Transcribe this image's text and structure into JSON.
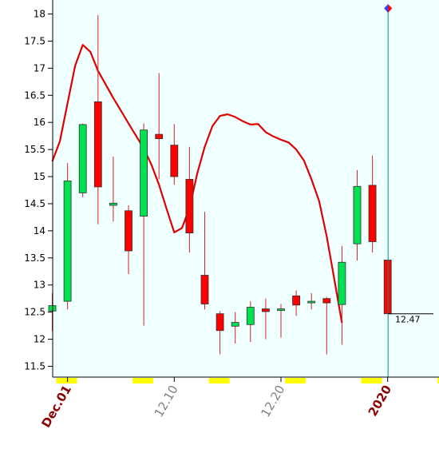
{
  "chart_data": {
    "type": "candlestick",
    "title": "",
    "xlabel": "",
    "ylabel": "",
    "ylim": [
      11.3,
      18.15
    ],
    "yticks": [
      11.5,
      12,
      12.5,
      13,
      13.5,
      14,
      14.5,
      15,
      15.5,
      16,
      16.5,
      17,
      17.5,
      18
    ],
    "ytick_labels": [
      "11.5",
      "12",
      "12.5",
      "13",
      "13.5",
      "14",
      "14.5",
      "15",
      "15.5",
      "16",
      "16.5",
      "17",
      "17.5",
      "18"
    ],
    "x_labels": [
      {
        "index": 1,
        "text": "Dec.01",
        "color": "#8b0000",
        "bold": true
      },
      {
        "index": 8,
        "text": "12.10",
        "color": "#808080",
        "bold": false
      },
      {
        "index": 15,
        "text": "12.20",
        "color": "#808080",
        "bold": false
      },
      {
        "index": 22,
        "text": "2020",
        "color": "#8b0000",
        "bold": true
      }
    ],
    "weekend_markers": [
      1,
      6,
      11,
      16,
      21,
      26
    ],
    "candles": [
      {
        "open": 12.52,
        "high": 12.85,
        "low": 12.15,
        "close": 12.62
      },
      {
        "open": 12.7,
        "high": 15.25,
        "low": 12.55,
        "close": 14.92
      },
      {
        "open": 14.7,
        "high": 15.98,
        "low": 14.62,
        "close": 15.96
      },
      {
        "open": 16.38,
        "high": 17.98,
        "low": 14.12,
        "close": 14.81
      },
      {
        "open": 14.47,
        "high": 15.37,
        "low": 14.17,
        "close": 14.51
      },
      {
        "open": 14.37,
        "high": 14.47,
        "low": 13.2,
        "close": 13.63
      },
      {
        "open": 14.27,
        "high": 15.98,
        "low": 12.25,
        "close": 15.86
      },
      {
        "open": 15.78,
        "high": 16.91,
        "low": 14.95,
        "close": 15.7
      },
      {
        "open": 15.58,
        "high": 15.97,
        "low": 14.85,
        "close": 15.0
      },
      {
        "open": 14.95,
        "high": 15.55,
        "low": 13.6,
        "close": 13.96
      },
      {
        "open": 13.18,
        "high": 14.35,
        "low": 12.55,
        "close": 12.65
      },
      {
        "open": 12.47,
        "high": 12.52,
        "low": 11.72,
        "close": 12.16
      },
      {
        "open": 12.24,
        "high": 12.5,
        "low": 11.92,
        "close": 12.31
      },
      {
        "open": 12.27,
        "high": 12.7,
        "low": 11.95,
        "close": 12.59
      },
      {
        "open": 12.56,
        "high": 12.75,
        "low": 12.0,
        "close": 12.51
      },
      {
        "open": 12.53,
        "high": 12.65,
        "low": 12.03,
        "close": 12.56
      },
      {
        "open": 12.8,
        "high": 12.9,
        "low": 12.43,
        "close": 12.63
      },
      {
        "open": 12.68,
        "high": 12.85,
        "low": 12.55,
        "close": 12.7
      },
      {
        "open": 12.75,
        "high": 12.78,
        "low": 11.72,
        "close": 12.67
      },
      {
        "open": 12.64,
        "high": 13.72,
        "low": 11.9,
        "close": 13.42
      },
      {
        "open": 13.76,
        "high": 15.12,
        "low": 13.45,
        "close": 14.82
      },
      {
        "open": 14.84,
        "high": 15.39,
        "low": 13.6,
        "close": 13.8
      },
      {
        "open": 13.46,
        "high": 13.46,
        "low": 12.47,
        "close": 12.47
      }
    ],
    "moving_average": [
      {
        "x": 0.0,
        "y": 15.28
      },
      {
        "x": 0.5,
        "y": 15.65
      },
      {
        "x": 1.0,
        "y": 16.35
      },
      {
        "x": 1.5,
        "y": 17.05
      },
      {
        "x": 2.0,
        "y": 17.43
      },
      {
        "x": 2.5,
        "y": 17.3
      },
      {
        "x": 3.0,
        "y": 16.95
      },
      {
        "x": 3.5,
        "y": 16.7
      },
      {
        "x": 4.0,
        "y": 16.45
      },
      {
        "x": 4.5,
        "y": 16.22
      },
      {
        "x": 5.0,
        "y": 15.98
      },
      {
        "x": 5.5,
        "y": 15.75
      },
      {
        "x": 6.0,
        "y": 15.52
      },
      {
        "x": 6.5,
        "y": 15.22
      },
      {
        "x": 7.0,
        "y": 14.85
      },
      {
        "x": 7.5,
        "y": 14.4
      },
      {
        "x": 8.0,
        "y": 13.97
      },
      {
        "x": 8.5,
        "y": 14.05
      },
      {
        "x": 9.0,
        "y": 14.42
      },
      {
        "x": 9.5,
        "y": 15.05
      },
      {
        "x": 10.0,
        "y": 15.55
      },
      {
        "x": 10.5,
        "y": 15.93
      },
      {
        "x": 11.0,
        "y": 16.12
      },
      {
        "x": 11.5,
        "y": 16.15
      },
      {
        "x": 12.0,
        "y": 16.1
      },
      {
        "x": 12.5,
        "y": 16.02
      },
      {
        "x": 13.0,
        "y": 15.96
      },
      {
        "x": 13.5,
        "y": 15.97
      },
      {
        "x": 14.0,
        "y": 15.82
      },
      {
        "x": 14.5,
        "y": 15.74
      },
      {
        "x": 15.0,
        "y": 15.68
      },
      {
        "x": 15.5,
        "y": 15.63
      },
      {
        "x": 16.0,
        "y": 15.5
      },
      {
        "x": 16.5,
        "y": 15.3
      },
      {
        "x": 17.0,
        "y": 14.95
      },
      {
        "x": 17.5,
        "y": 14.55
      },
      {
        "x": 18.0,
        "y": 13.9
      },
      {
        "x": 18.5,
        "y": 13.1
      },
      {
        "x": 19.0,
        "y": 12.3
      }
    ],
    "last_value_label": "12.47",
    "cursor_index": 22,
    "colors": {
      "up": "#00e050",
      "down": "#ff0000",
      "wick": "#e02020",
      "ma": "#e00000",
      "plot_bg": "#f0ffff",
      "cursor": "#008b8b",
      "weekend": "#ffff00",
      "marker_red": "#ff0000",
      "marker_blue": "#3040ff"
    }
  }
}
